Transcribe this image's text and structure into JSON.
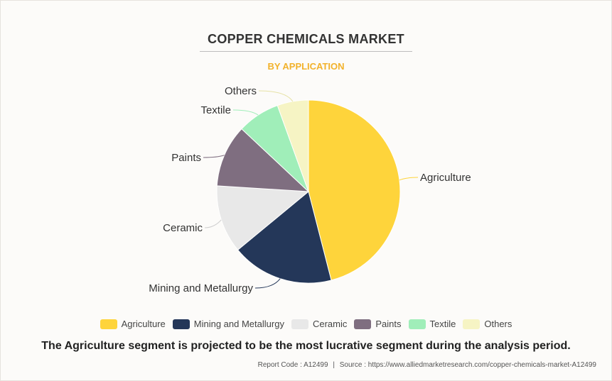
{
  "header": {
    "title": "COPPER CHEMICALS MARKET",
    "subtitle": "BY APPLICATION"
  },
  "caption": "The Agriculture segment is projected to be the most lucrative segment during the analysis period.",
  "footer": {
    "report_code": "Report Code : A12499",
    "separator": "|",
    "source": "Source : https://www.alliedmarketresearch.com/copper-chemicals-market-A12499"
  },
  "chart_data": {
    "type": "pie",
    "categories": [
      "Agriculture",
      "Mining and Metallurgy",
      "Ceramic",
      "Paints",
      "Textile",
      "Others"
    ],
    "values": [
      46,
      18,
      12,
      11,
      7.5,
      5.5
    ],
    "colors": [
      "#fed43b",
      "#243759",
      "#e8e8e8",
      "#7f6e80",
      "#a0eeb9",
      "#f6f4c4"
    ],
    "legend_position": "bottom",
    "start_angle": "top, clockwise"
  }
}
